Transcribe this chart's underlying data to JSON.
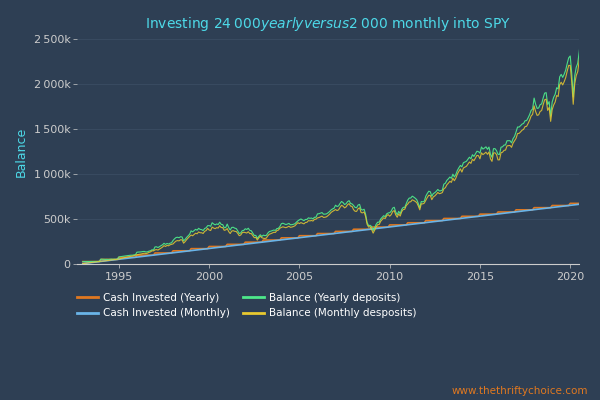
{
  "title": "Investing $24 000 yearly versus $2 000 monthly into SPY",
  "background_color": "#2e3f54",
  "plot_bg_color": "#2e3f54",
  "title_color": "#4dd9e8",
  "ylabel": "Balance",
  "ylabel_color": "#4dd9e8",
  "tick_color": "#cccccc",
  "grid_color": "#3d5066",
  "website_text": "www.thethriftychoice.com",
  "website_color": "#e07820",
  "legend_text_color": "#ffffff",
  "line_cash_yearly_color": "#e07820",
  "line_cash_monthly_color": "#6ab4e8",
  "line_bal_yearly_color": "#4de88a",
  "line_bal_monthly_color": "#e8c930",
  "annual_investment": 24000,
  "monthly_investment": 2000,
  "start_year": 1993,
  "end_year": 2020,
  "ylim": [
    0,
    2500000
  ],
  "ytick_labels": [
    "0",
    "500k",
    "1 000k",
    "1 500k",
    "2 000k",
    "2 500k"
  ]
}
